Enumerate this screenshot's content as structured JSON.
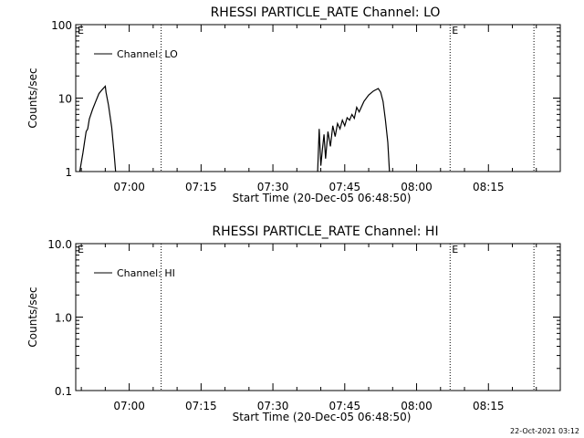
{
  "chart_data": [
    {
      "type": "line",
      "title": "RHESSI PARTICLE_RATE Channel: LO",
      "xlabel": "Start Time (20-Dec-05 06:48:50)",
      "ylabel": "Counts/sec",
      "yscale": "log",
      "ylim": [
        1,
        100
      ],
      "xlim": [
        "06:48:50",
        "08:30:00"
      ],
      "xtick_labels": [
        "07:00",
        "07:15",
        "07:30",
        "07:45",
        "08:00",
        "08:15"
      ],
      "ytick_labels": [
        "1",
        "10",
        "100"
      ],
      "legend": "top-left",
      "grid": false,
      "series": [
        {
          "name": "Channel: LO",
          "points": [
            [
              "06:49:40",
              1.0
            ],
            [
              "06:50:20",
              1.8
            ],
            [
              "06:50:40",
              2.5
            ],
            [
              "06:51:00",
              3.5
            ],
            [
              "06:51:20",
              3.8
            ],
            [
              "06:51:40",
              5.2
            ],
            [
              "06:52:20",
              7.0
            ],
            [
              "06:53:00",
              9.0
            ],
            [
              "06:53:40",
              11.5
            ],
            [
              "06:54:20",
              13.0
            ],
            [
              "06:55:00",
              14.5
            ],
            [
              "06:55:10",
              12.0
            ],
            [
              "06:55:40",
              8.0
            ],
            [
              "06:56:20",
              4.0
            ],
            [
              "06:56:50",
              1.8
            ],
            [
              "06:57:10",
              1.0
            ],
            [
              "07:39:20",
              1.0
            ],
            [
              "07:39:40",
              3.8
            ],
            [
              "07:40:00",
              1.2
            ],
            [
              "07:40:20",
              2.0
            ],
            [
              "07:40:40",
              3.2
            ],
            [
              "07:41:00",
              1.5
            ],
            [
              "07:41:30",
              3.5
            ],
            [
              "07:42:00",
              2.2
            ],
            [
              "07:42:30",
              4.2
            ],
            [
              "07:43:00",
              3.0
            ],
            [
              "07:43:30",
              4.5
            ],
            [
              "07:44:00",
              3.8
            ],
            [
              "07:44:30",
              5.0
            ],
            [
              "07:45:00",
              4.2
            ],
            [
              "07:45:30",
              5.4
            ],
            [
              "07:46:00",
              5.0
            ],
            [
              "07:46:30",
              6.0
            ],
            [
              "07:47:00",
              5.3
            ],
            [
              "07:47:30",
              7.5
            ],
            [
              "07:48:00",
              6.5
            ],
            [
              "07:49:00",
              9.0
            ],
            [
              "07:50:00",
              11.0
            ],
            [
              "07:51:00",
              12.5
            ],
            [
              "07:52:00",
              13.5
            ],
            [
              "07:52:30",
              12.0
            ],
            [
              "07:53:00",
              9.0
            ],
            [
              "07:53:30",
              5.0
            ],
            [
              "07:54:00",
              2.5
            ],
            [
              "07:54:20",
              1.0
            ]
          ]
        }
      ],
      "annotations": [
        {
          "text": "E",
          "x": "06:48:50",
          "position": "top"
        },
        {
          "text": "E",
          "x": "08:07:00",
          "position": "top"
        }
      ],
      "vlines": [
        "07:06:40",
        "08:07:00",
        "08:24:30"
      ]
    },
    {
      "type": "line",
      "title": "RHESSI PARTICLE_RATE Channel: HI",
      "xlabel": "Start Time (20-Dec-05 06:48:50)",
      "ylabel": "Counts/sec",
      "yscale": "log",
      "ylim": [
        0.1,
        10
      ],
      "xlim": [
        "06:48:50",
        "08:30:00"
      ],
      "xtick_labels": [
        "07:00",
        "07:15",
        "07:30",
        "07:45",
        "08:00",
        "08:15"
      ],
      "ytick_labels": [
        "0.1",
        "1.0",
        "10.0"
      ],
      "legend": "top-left",
      "grid": false,
      "series": [
        {
          "name": "Channel: HI",
          "points": []
        }
      ],
      "annotations": [
        {
          "text": "E",
          "x": "06:48:50",
          "position": "top"
        },
        {
          "text": "E",
          "x": "08:07:00",
          "position": "top"
        }
      ],
      "vlines": [
        "07:06:40",
        "08:07:00",
        "08:24:30"
      ]
    }
  ],
  "footer": {
    "timestamp": "22-Oct-2021 03:12"
  }
}
